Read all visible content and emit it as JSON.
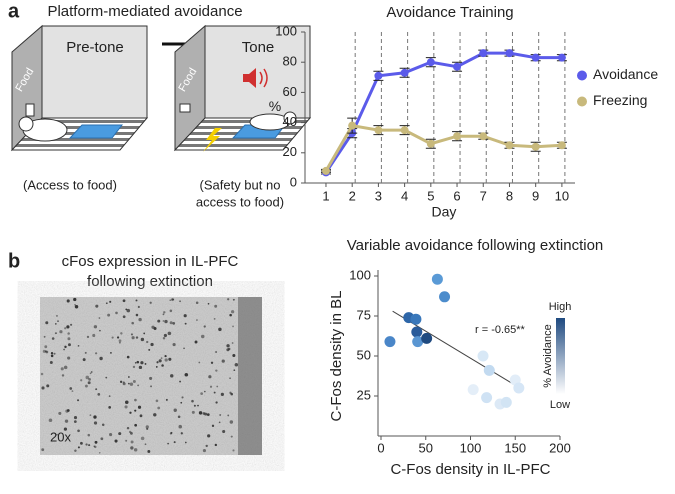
{
  "panel_labels": [
    "a",
    "b"
  ],
  "illustration": {
    "title": "Platform-mediated avoidance",
    "boxes": [
      {
        "label": "Pre-tone",
        "food": "Food",
        "caption": [
          "(Access to food)"
        ]
      },
      {
        "label": "Tone",
        "food": "Food",
        "caption": [
          "(Safety but no",
          "access to food)"
        ]
      }
    ]
  },
  "micrograph": {
    "title": [
      "cFos expression in IL-PFC",
      "following extinction"
    ],
    "magnification": "20x"
  },
  "chart_data": [
    {
      "type": "line",
      "title": "Avoidance Training",
      "xlabel": "Day",
      "ylabel": "%",
      "x": [
        1,
        2,
        3,
        4,
        5,
        6,
        7,
        8,
        9,
        10
      ],
      "xlim": [
        0.2,
        10.5
      ],
      "xticks": [
        1,
        2,
        3,
        4,
        5,
        6,
        7,
        8,
        9,
        10
      ],
      "ylim": [
        0,
        100
      ],
      "yticks": [
        0,
        20,
        40,
        60,
        80,
        100
      ],
      "vertical_dashed_lines": true,
      "legend": "right",
      "series": [
        {
          "name": "Avoidance",
          "color": "#5b5bea",
          "values": [
            7,
            33,
            71,
            73,
            80,
            77,
            86,
            86,
            83,
            83
          ],
          "errors": [
            1,
            3,
            3,
            3,
            3,
            3,
            2,
            2,
            2,
            2
          ]
        },
        {
          "name": "Freezing",
          "color": "#c8b97c",
          "values": [
            8,
            38,
            35,
            35,
            26,
            31,
            31,
            25,
            24,
            25
          ],
          "errors": [
            1,
            5,
            3,
            3,
            3,
            3,
            2,
            2,
            3,
            2
          ]
        }
      ]
    },
    {
      "type": "scatter",
      "title": "Variable avoidance following extinction",
      "xlabel": "C-Fos density in IL-PFC",
      "ylabel": "C-Fos density in BL",
      "xlim": [
        0,
        200
      ],
      "xticks": [
        0,
        50,
        100,
        150,
        200
      ],
      "ylim": [
        0,
        100
      ],
      "yticks": [
        25,
        50,
        75,
        100
      ],
      "x": [
        10,
        31,
        39,
        40,
        41,
        51,
        63,
        71,
        114,
        121,
        103,
        118,
        133,
        140,
        150,
        154
      ],
      "y": [
        59,
        74,
        73,
        65,
        59,
        61,
        98,
        87,
        50,
        41,
        29,
        24,
        20,
        21,
        35,
        30
      ],
      "colors": [
        "#4a86c8",
        "#2e66a8",
        "#3a78bb",
        "#2a5b9a",
        "#5a96d2",
        "#1f4a80",
        "#5a9ad6",
        "#4c8ccc",
        "#d8e8f6",
        "#c2daf0",
        "#e4eef8",
        "#cfe2f4",
        "#dce9f6",
        "#d2e4f4",
        "#e2edf8",
        "#d6e6f6"
      ],
      "fit_line": {
        "x": [
          13,
          158
        ],
        "y": [
          78,
          29
        ]
      },
      "annotation": "r = -0.65**",
      "colorbar": {
        "title": "% Avoidance",
        "high": "High",
        "low": "Low",
        "colors": [
          "#1f4a80",
          "#ffffff"
        ]
      }
    }
  ]
}
